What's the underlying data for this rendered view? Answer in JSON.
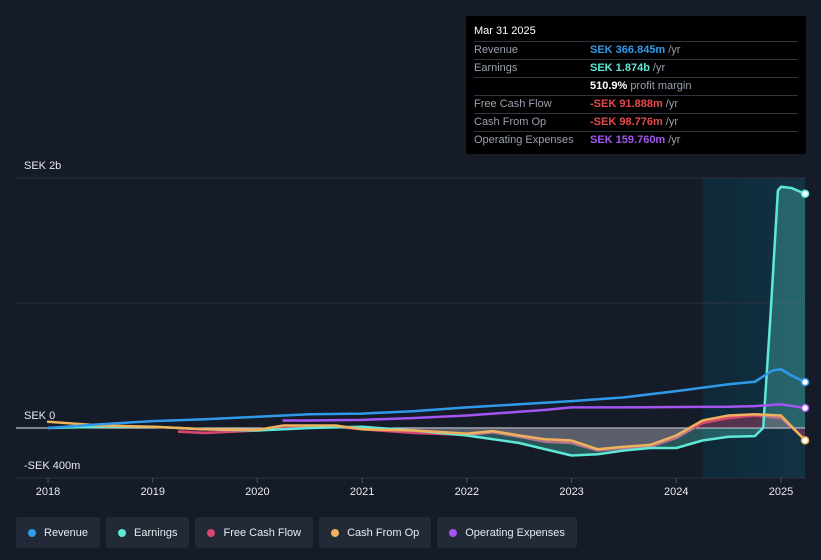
{
  "tooltip": {
    "date": "Mar 31 2025",
    "rows": [
      {
        "key": "Revenue",
        "value": "SEK 366.845m",
        "unit": "/yr",
        "color": "#2f9be8"
      },
      {
        "key": "Earnings",
        "value": "SEK 1.874b",
        "unit": "/yr",
        "color": "#5ee8d8"
      },
      {
        "key": "",
        "value": "510.9%",
        "unit": "profit margin",
        "color": "#ffffff"
      },
      {
        "key": "Free Cash Flow",
        "value": "-SEK 91.888m",
        "unit": "/yr",
        "color": "#e84a4a"
      },
      {
        "key": "Cash From Op",
        "value": "-SEK 98.776m",
        "unit": "/yr",
        "color": "#e84a4a"
      },
      {
        "key": "Operating Expenses",
        "value": "SEK 159.760m",
        "unit": "/yr",
        "color": "#a454f0"
      }
    ]
  },
  "axis": {
    "top_label": "SEK 2b",
    "zero_label": "SEK 0",
    "bottom_label": "-SEK 400m"
  },
  "legend": [
    {
      "label": "Revenue",
      "color": "#2f9be8"
    },
    {
      "label": "Earnings",
      "color": "#5ee8d8"
    },
    {
      "label": "Free Cash Flow",
      "color": "#d9466f"
    },
    {
      "label": "Cash From Op",
      "color": "#efb15c"
    },
    {
      "label": "Operating Expenses",
      "color": "#a454f0"
    }
  ],
  "chart_data": {
    "type": "line",
    "ylim": [
      -400,
      2000
    ],
    "y_unit": "SEK m",
    "x_ticks": [
      "2018",
      "2019",
      "2020",
      "2021",
      "2022",
      "2023",
      "2024",
      "2025"
    ],
    "highlight_from": 2024.25,
    "series": [
      {
        "name": "Revenue",
        "color": "#2f9be8",
        "fill": false,
        "points": [
          [
            2018.0,
            0
          ],
          [
            2018.5,
            30
          ],
          [
            2019.0,
            55
          ],
          [
            2019.5,
            70
          ],
          [
            2020.0,
            90
          ],
          [
            2020.5,
            110
          ],
          [
            2021.0,
            115
          ],
          [
            2021.5,
            135
          ],
          [
            2022.0,
            165
          ],
          [
            2022.5,
            190
          ],
          [
            2023.0,
            215
          ],
          [
            2023.5,
            245
          ],
          [
            2024.0,
            295
          ],
          [
            2024.5,
            350
          ],
          [
            2024.75,
            370
          ],
          [
            2024.92,
            460
          ],
          [
            2025.0,
            470
          ],
          [
            2025.1,
            420
          ],
          [
            2025.23,
            367
          ]
        ]
      },
      {
        "name": "Earnings",
        "color": "#5ee8d8",
        "fill": true,
        "points": [
          [
            2018.0,
            0
          ],
          [
            2018.5,
            10
          ],
          [
            2019.0,
            10
          ],
          [
            2019.5,
            -10
          ],
          [
            2020.0,
            -20
          ],
          [
            2020.5,
            0
          ],
          [
            2021.0,
            10
          ],
          [
            2021.5,
            -20
          ],
          [
            2022.0,
            -60
          ],
          [
            2022.5,
            -120
          ],
          [
            2023.0,
            -220
          ],
          [
            2023.25,
            -210
          ],
          [
            2023.5,
            -180
          ],
          [
            2023.75,
            -160
          ],
          [
            2024.0,
            -160
          ],
          [
            2024.25,
            -100
          ],
          [
            2024.5,
            -70
          ],
          [
            2024.75,
            -65
          ],
          [
            2024.83,
            0
          ],
          [
            2024.9,
            900
          ],
          [
            2024.97,
            1900
          ],
          [
            2025.0,
            1930
          ],
          [
            2025.1,
            1920
          ],
          [
            2025.23,
            1874
          ]
        ]
      },
      {
        "name": "Free Cash Flow",
        "color": "#d9466f",
        "fill": true,
        "points": [
          [
            2019.25,
            -30
          ],
          [
            2019.5,
            -40
          ],
          [
            2020.0,
            -20
          ],
          [
            2020.25,
            0
          ],
          [
            2020.75,
            10
          ],
          [
            2021.0,
            -10
          ],
          [
            2021.5,
            -40
          ],
          [
            2022.0,
            -55
          ],
          [
            2022.25,
            -35
          ],
          [
            2022.5,
            -70
          ],
          [
            2022.75,
            -110
          ],
          [
            2023.0,
            -120
          ],
          [
            2023.25,
            -180
          ],
          [
            2023.5,
            -160
          ],
          [
            2023.75,
            -150
          ],
          [
            2024.0,
            -80
          ],
          [
            2024.25,
            40
          ],
          [
            2024.5,
            80
          ],
          [
            2024.75,
            100
          ],
          [
            2025.0,
            80
          ],
          [
            2025.23,
            -92
          ]
        ]
      },
      {
        "name": "Cash From Op",
        "color": "#efb15c",
        "fill": false,
        "points": [
          [
            2018.0,
            50
          ],
          [
            2018.5,
            20
          ],
          [
            2019.0,
            10
          ],
          [
            2019.5,
            -10
          ],
          [
            2020.0,
            -15
          ],
          [
            2020.25,
            20
          ],
          [
            2020.75,
            20
          ],
          [
            2021.0,
            -10
          ],
          [
            2021.5,
            -20
          ],
          [
            2022.0,
            -45
          ],
          [
            2022.25,
            -25
          ],
          [
            2022.5,
            -60
          ],
          [
            2022.75,
            -90
          ],
          [
            2023.0,
            -100
          ],
          [
            2023.25,
            -170
          ],
          [
            2023.5,
            -150
          ],
          [
            2023.75,
            -135
          ],
          [
            2024.0,
            -60
          ],
          [
            2024.25,
            60
          ],
          [
            2024.5,
            100
          ],
          [
            2024.75,
            110
          ],
          [
            2025.0,
            100
          ],
          [
            2025.23,
            -99
          ]
        ]
      },
      {
        "name": "Operating Expenses",
        "color": "#a454f0",
        "fill": false,
        "points": [
          [
            2020.25,
            60
          ],
          [
            2020.5,
            60
          ],
          [
            2021.0,
            65
          ],
          [
            2021.5,
            80
          ],
          [
            2022.0,
            100
          ],
          [
            2022.5,
            130
          ],
          [
            2022.75,
            145
          ],
          [
            2023.0,
            165
          ],
          [
            2023.5,
            165
          ],
          [
            2024.0,
            168
          ],
          [
            2024.5,
            170
          ],
          [
            2024.75,
            175
          ],
          [
            2025.0,
            190
          ],
          [
            2025.23,
            160
          ]
        ]
      }
    ]
  }
}
